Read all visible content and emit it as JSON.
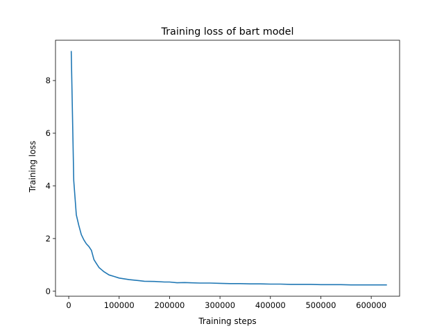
{
  "chart_data": {
    "type": "line",
    "title": "Training loss of bart model",
    "xlabel": "Training steps",
    "ylabel": "Training loss",
    "xlim": [
      -26250,
      656250
    ],
    "ylim": [
      -0.19,
      9.53
    ],
    "xticks": [
      {
        "value": 0,
        "label": "0"
      },
      {
        "value": 100000,
        "label": "100000"
      },
      {
        "value": 200000,
        "label": "200000"
      },
      {
        "value": 300000,
        "label": "300000"
      },
      {
        "value": 400000,
        "label": "400000"
      },
      {
        "value": 500000,
        "label": "500000"
      },
      {
        "value": 600000,
        "label": "600000"
      }
    ],
    "yticks": [
      {
        "value": 0,
        "label": "0"
      },
      {
        "value": 2,
        "label": "2"
      },
      {
        "value": 4,
        "label": "4"
      },
      {
        "value": 6,
        "label": "6"
      },
      {
        "value": 8,
        "label": "8"
      }
    ],
    "grid": false,
    "series": [
      {
        "color": "#1f77b4",
        "x": [
          5000,
          10000,
          15000,
          20000,
          25000,
          30000,
          35000,
          40000,
          45000,
          50000,
          55000,
          60000,
          65000,
          70000,
          80000,
          90000,
          100000,
          110000,
          120000,
          130000,
          140000,
          150000,
          170000,
          190000,
          200000,
          215000,
          230000,
          240000,
          260000,
          280000,
          300000,
          320000,
          340000,
          360000,
          380000,
          400000,
          420000,
          440000,
          460000,
          480000,
          500000,
          520000,
          540000,
          560000,
          580000,
          600000,
          615000,
          630000
        ],
        "y": [
          9.1,
          4.2,
          2.9,
          2.5,
          2.15,
          1.95,
          1.8,
          1.7,
          1.55,
          1.2,
          1.05,
          0.9,
          0.82,
          0.74,
          0.62,
          0.56,
          0.5,
          0.47,
          0.44,
          0.42,
          0.4,
          0.38,
          0.37,
          0.35,
          0.35,
          0.32,
          0.33,
          0.32,
          0.31,
          0.31,
          0.3,
          0.29,
          0.29,
          0.28,
          0.28,
          0.27,
          0.27,
          0.26,
          0.26,
          0.26,
          0.25,
          0.25,
          0.25,
          0.24,
          0.24,
          0.24,
          0.24,
          0.24
        ]
      }
    ]
  }
}
